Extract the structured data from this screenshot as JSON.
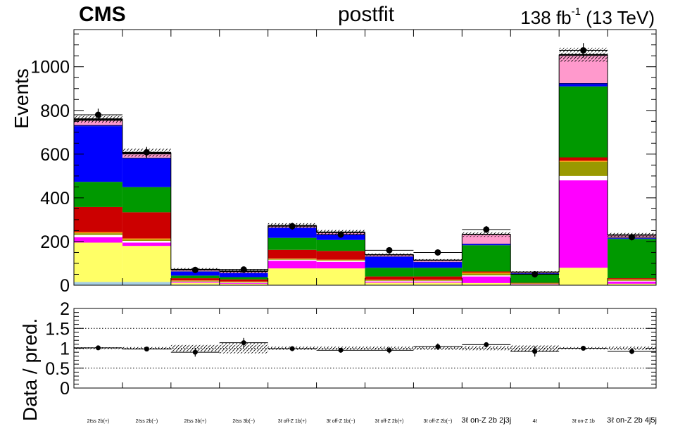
{
  "header": {
    "experiment": "CMS",
    "fit_label": "postfit",
    "lumi_value": "138 fb",
    "lumi_exp": "-1",
    "lumi_energy": " (13 TeV)"
  },
  "chart_data": [
    {
      "type": "bar",
      "stacked": true,
      "ylabel": "Events",
      "ylim": [
        0,
        1170
      ],
      "yticks": [
        0,
        200,
        400,
        600,
        800,
        1000
      ],
      "yticklabels": [
        "0",
        "200",
        "400",
        "600",
        "800",
        "1000"
      ],
      "categories": [
        "2ℓss 2b(+)",
        "2ℓss 2b(−)",
        "2ℓss 3b(+)",
        "2ℓss 3b(−)",
        "3ℓ off-Z 1b(+)",
        "3ℓ off-Z 1b(−)",
        "3ℓ off-Z 2b(+)",
        "3ℓ off-Z 2b(−)",
        "3ℓ on-Z 2b 2j3j",
        "4ℓ",
        "3ℓ on-Z 1b",
        "3ℓ on-Z 2b 4j5j"
      ],
      "tick_label_sizes": [
        "small",
        "small",
        "small",
        "small",
        "small",
        "small",
        "small",
        "small",
        "large",
        "small",
        "small",
        "large"
      ],
      "series": [
        {
          "color": "#a6cee3",
          "values": [
            15,
            15,
            3,
            2,
            2,
            2,
            2,
            2,
            2,
            1,
            2,
            2
          ]
        },
        {
          "color": "#ffff66",
          "values": [
            180,
            165,
            8,
            5,
            75,
            75,
            10,
            10,
            8,
            2,
            78,
            5
          ]
        },
        {
          "color": "#ff00ff",
          "values": [
            25,
            15,
            4,
            3,
            35,
            30,
            5,
            5,
            30,
            2,
            400,
            10
          ]
        },
        {
          "color": "#ffffff",
          "values": [
            10,
            8,
            2,
            2,
            5,
            5,
            3,
            3,
            5,
            1,
            20,
            3
          ]
        },
        {
          "color": "#999900",
          "values": [
            8,
            6,
            3,
            3,
            3,
            3,
            3,
            3,
            8,
            2,
            65,
            5
          ]
        },
        {
          "color": "#ff9900",
          "values": [
            5,
            5,
            2,
            2,
            2,
            2,
            2,
            2,
            5,
            1,
            5,
            2
          ]
        },
        {
          "color": "#cc0000",
          "values": [
            115,
            120,
            10,
            10,
            40,
            40,
            15,
            15,
            5,
            2,
            15,
            5
          ]
        },
        {
          "color": "#009900",
          "values": [
            115,
            115,
            12,
            10,
            55,
            50,
            40,
            40,
            120,
            40,
            325,
            180
          ]
        },
        {
          "color": "#0000ff",
          "values": [
            255,
            130,
            18,
            18,
            45,
            25,
            50,
            25,
            5,
            2,
            10,
            3
          ]
        },
        {
          "color": "#000080",
          "values": [
            5,
            5,
            2,
            2,
            2,
            2,
            2,
            2,
            2,
            2,
            5,
            2
          ]
        },
        {
          "color": "#ff99cc",
          "values": [
            20,
            15,
            4,
            4,
            5,
            5,
            5,
            5,
            40,
            3,
            125,
            10
          ]
        },
        {
          "color": "#000000",
          "values": [
            8,
            8,
            4,
            4,
            4,
            4,
            3,
            3,
            3,
            2,
            5,
            3
          ]
        }
      ],
      "data_points": [
        780,
        608,
        70,
        72,
        270,
        232,
        160,
        150,
        255,
        50,
        1075,
        220
      ],
      "data_errors": [
        28,
        25,
        8,
        9,
        16,
        15,
        13,
        12,
        16,
        7,
        33,
        15
      ]
    },
    {
      "type": "scatter",
      "ylabel": "Data / pred.",
      "ylim": [
        0,
        2
      ],
      "yticks": [
        0,
        0.5,
        1,
        1.5,
        2
      ],
      "yticklabels": [
        "0",
        "0.5",
        "1",
        "1.5",
        "2"
      ],
      "gridlines": [
        0.5,
        1,
        1.5
      ],
      "ratio_values": [
        1.01,
        0.98,
        0.9,
        1.14,
        0.99,
        0.95,
        0.95,
        1.04,
        1.09,
        0.92,
        1.0,
        0.92
      ],
      "ratio_errors": [
        0.04,
        0.04,
        0.11,
        0.12,
        0.06,
        0.06,
        0.08,
        0.08,
        0.06,
        0.13,
        0.03,
        0.07
      ],
      "unc_band": [
        0.025,
        0.03,
        0.09,
        0.13,
        0.04,
        0.04,
        0.04,
        0.04,
        0.05,
        0.07,
        0.03,
        0.04
      ]
    }
  ]
}
